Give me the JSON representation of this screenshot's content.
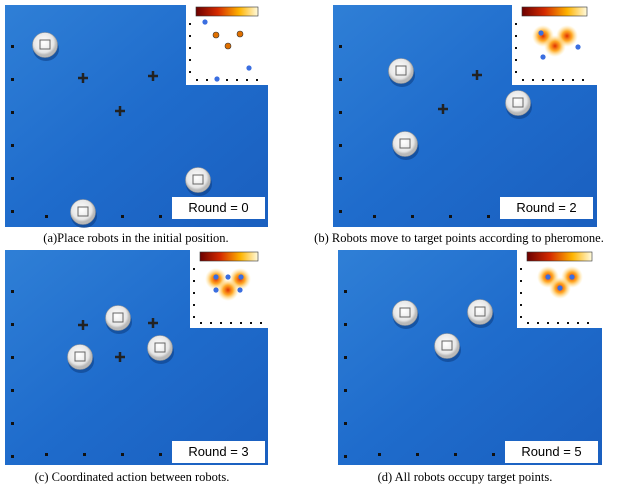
{
  "panels": [
    {
      "round_label": "Round = 0",
      "caption": "(a)Place robots in the initial position."
    },
    {
      "round_label": "Round = 2",
      "caption": "(b) Robots move to target points according to pheromone."
    },
    {
      "round_label": "Round = 3",
      "caption": "(c) Coordinated action between robots."
    },
    {
      "round_label": "Round = 5",
      "caption": "(d) All robots occupy target points."
    }
  ]
}
